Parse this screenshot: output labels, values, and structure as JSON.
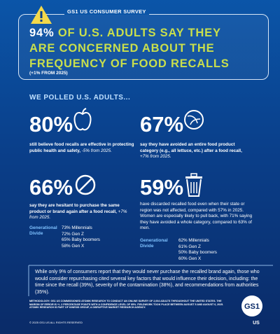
{
  "header": {
    "badge": "GS1 US CONSUMER SURVEY",
    "headline_stat": "94%",
    "headline_rest": "OF U.S. ADULTS SAY THEY ARE CONCERNED ABOUT THE FREQUENCY OF FOOD RECALLS",
    "change": "(+1% FROM 2025)"
  },
  "intro": "WE POLLED U.S. ADULTS...",
  "stats": [
    {
      "value": "80%",
      "text": "still believe food recalls are effective in protecting public health and safety,",
      "change": "-5% from 2025."
    },
    {
      "value": "67%",
      "text": "say they have avoided an entire food product category (e.g., all lettuce, etc.) after a food recall,",
      "change": "+7% from 2025."
    },
    {
      "value": "66%",
      "text": "say they are hesitant to purchase the same product or brand again after a food recall,",
      "change": "+7% from 2025.",
      "divide_label": "Generational Divide",
      "divide": [
        "73% Millennials",
        "72% Gen Z",
        "65% Baby boomers",
        "58% Gen X"
      ]
    },
    {
      "value": "59%",
      "text": "have discarded recalled food even when their state or region was not affected, compared with 57% in 2025. Women are especially likely to pull back, with 71% saying they have avoided a whole category, compared to 63% of men.",
      "divide_label": "Generational Divide",
      "divide": [
        "62% Millennials",
        "61% Gen Z",
        "50% Baby boomers",
        "60% Gen X"
      ]
    }
  ],
  "footer": {
    "text": "While only 9% of consumers report that they would never purchase the recalled brand again, those who would consider repurchasing cited several key factors that would influence their decision, including: the time since the recall (39%), severity of the contamination (38%), and recommendations from authorities (35%).",
    "methodology": "METHODOLOGY: GS1 US COMMISSIONED ATOMIK RESEARCH TO CONDUCT AN ONLINE SURVEY OF 2,004 ADULTS THROUGHOUT THE UNITED STATES. THE MARGIN OF ERROR IS +/- 2 PERCENTAGE POINTS WITH A CONFIDENCE LEVEL OF 95%. FIELDWORK TOOK PLACE BETWEEN AUGUST 5 AND AUGUST 6, 2025. ATOMIK RESEARCH IS PART OF KINESIS GROUP, A DISRUPTIVE MARKET RESEARCH AGENCY.",
    "copyright": "© 2025 GS1 US ALL RIGHTS RESERVED",
    "logo": "GS1",
    "logo_sub": "US"
  }
}
